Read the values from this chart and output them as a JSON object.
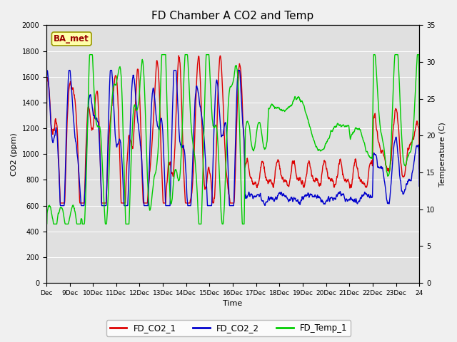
{
  "title": "FD Chamber A CO2 and Temp",
  "xlabel": "Time",
  "ylabel_left": "CO2 (ppm)",
  "ylabel_right": "Temperature (C)",
  "co2_ylim": [
    0,
    2000
  ],
  "temp_ylim": [
    0,
    35
  ],
  "co2_yticks": [
    0,
    200,
    400,
    600,
    800,
    1000,
    1200,
    1400,
    1600,
    1800,
    2000
  ],
  "temp_yticks": [
    0,
    5,
    10,
    15,
    20,
    25,
    30,
    35
  ],
  "color_co2_1": "#dd0000",
  "color_co2_2": "#0000cc",
  "color_temp": "#00cc00",
  "legend_labels": [
    "FD_CO2_1",
    "FD_CO2_2",
    "FD_Temp_1"
  ],
  "ba_met_label": "BA_met",
  "bg_color_upper": "#dcdcdc",
  "bg_color_lower": "#ececec",
  "linewidth": 1.0,
  "title_fontsize": 11
}
